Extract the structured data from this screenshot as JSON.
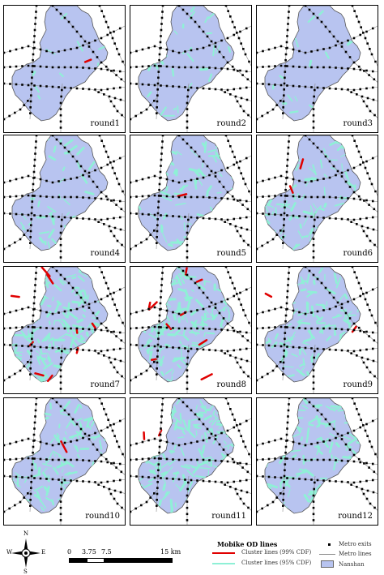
{
  "panels": [
    {
      "label": "round1",
      "cyan": 0.05,
      "red": 0.03
    },
    {
      "label": "round2",
      "cyan": 0.15,
      "red": 0.0
    },
    {
      "label": "round3",
      "cyan": 0.1,
      "red": 0.0
    },
    {
      "label": "round4",
      "cyan": 0.25,
      "red": 0.0
    },
    {
      "label": "round5",
      "cyan": 0.35,
      "red": 0.03
    },
    {
      "label": "round6",
      "cyan": 0.45,
      "red": 0.05
    },
    {
      "label": "round7",
      "cyan": 0.75,
      "red": 0.3
    },
    {
      "label": "round8",
      "cyan": 0.8,
      "red": 0.3
    },
    {
      "label": "round9",
      "cyan": 0.55,
      "red": 0.05
    },
    {
      "label": "round10",
      "cyan": 0.55,
      "red": 0.04
    },
    {
      "label": "round11",
      "cyan": 0.7,
      "red": 0.05
    },
    {
      "label": "round12",
      "cyan": 0.55,
      "red": 0.0
    }
  ],
  "legend": {
    "title": "Mobike OD lines",
    "red_label": "Cluster lines (99% CDF)",
    "cyan_label": "Cluster lines (95% CDF)",
    "metro_exits": "Metro exits",
    "metro_lines": "Metro lines",
    "nanshan": "Nanshan",
    "colors": {
      "red": "#e00000",
      "cyan": "#8ff0d6",
      "district": "#b8c4f0",
      "metro": "#000000"
    }
  },
  "compass": {
    "n": "N",
    "s": "S",
    "e": "E",
    "w": "W"
  },
  "scale": {
    "ticks": [
      "0",
      "3.75",
      "7.5",
      "15 km"
    ]
  }
}
